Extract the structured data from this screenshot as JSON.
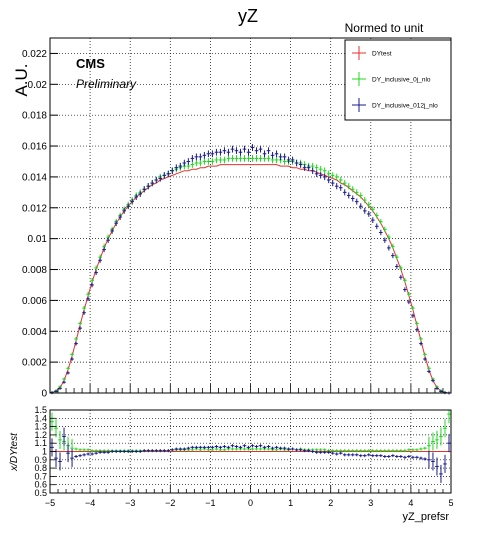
{
  "chart_data": [
    {
      "type": "scatter",
      "title": "yZ",
      "header": "Normed to unit",
      "ylabel": "A.U.",
      "xlabel": "",
      "xlim": [
        -5,
        5
      ],
      "ylim": [
        0,
        0.023
      ],
      "grid": true,
      "legend_position": "top-right",
      "annotations": [
        "CMS",
        "Preliminary"
      ],
      "yticks": [
        "0",
        "0.002",
        "0.004",
        "0.006",
        "0.008",
        "0.01",
        "0.012",
        "0.014",
        "0.016",
        "0.018",
        "0.02",
        "0.022"
      ],
      "x": [
        -4.95,
        -4.85,
        -4.75,
        -4.65,
        -4.55,
        -4.45,
        -4.35,
        -4.25,
        -4.15,
        -4.05,
        -3.95,
        -3.85,
        -3.75,
        -3.65,
        -3.55,
        -3.45,
        -3.35,
        -3.25,
        -3.15,
        -3.05,
        -2.95,
        -2.85,
        -2.75,
        -2.65,
        -2.55,
        -2.45,
        -2.35,
        -2.25,
        -2.15,
        -2.05,
        -1.95,
        -1.85,
        -1.75,
        -1.65,
        -1.55,
        -1.45,
        -1.35,
        -1.25,
        -1.15,
        -1.05,
        -0.95,
        -0.85,
        -0.75,
        -0.65,
        -0.55,
        -0.45,
        -0.35,
        -0.25,
        -0.15,
        -0.05,
        0.05,
        0.15,
        0.25,
        0.35,
        0.45,
        0.55,
        0.65,
        0.75,
        0.85,
        0.95,
        1.05,
        1.15,
        1.25,
        1.35,
        1.45,
        1.55,
        1.65,
        1.75,
        1.85,
        1.95,
        2.05,
        2.15,
        2.25,
        2.35,
        2.45,
        2.55,
        2.65,
        2.75,
        2.85,
        2.95,
        3.05,
        3.15,
        3.25,
        3.35,
        3.45,
        3.55,
        3.65,
        3.75,
        3.85,
        3.95,
        4.05,
        4.15,
        4.25,
        4.35,
        4.45,
        4.55,
        4.65,
        4.75,
        4.85,
        4.95
      ],
      "series": [
        {
          "name": "DYtest",
          "color": "#e8312f",
          "kind": "line",
          "values": [
            3e-05,
            0.00012,
            0.00035,
            0.0008,
            0.0015,
            0.0024,
            0.0034,
            0.0044,
            0.0054,
            0.0063,
            0.0072,
            0.008,
            0.0087,
            0.0094,
            0.01,
            0.0105,
            0.011,
            0.0114,
            0.0118,
            0.0121,
            0.0124,
            0.0127,
            0.0129,
            0.0131,
            0.0133,
            0.0135,
            0.0136,
            0.0138,
            0.0139,
            0.014,
            0.0141,
            0.0142,
            0.0143,
            0.0144,
            0.0144,
            0.0145,
            0.0145,
            0.0146,
            0.0146,
            0.0147,
            0.0147,
            0.0147,
            0.0148,
            0.0148,
            0.0148,
            0.0148,
            0.0148,
            0.0148,
            0.0148,
            0.0148,
            0.0148,
            0.0148,
            0.0148,
            0.0148,
            0.0148,
            0.0148,
            0.0148,
            0.0147,
            0.0147,
            0.0147,
            0.0146,
            0.0146,
            0.0145,
            0.0145,
            0.0144,
            0.0144,
            0.0143,
            0.0142,
            0.0141,
            0.014,
            0.0139,
            0.0138,
            0.0136,
            0.0135,
            0.0133,
            0.0131,
            0.0129,
            0.0127,
            0.0124,
            0.0121,
            0.0118,
            0.0114,
            0.011,
            0.0105,
            0.01,
            0.0094,
            0.0087,
            0.008,
            0.0072,
            0.0063,
            0.0054,
            0.0044,
            0.0034,
            0.0024,
            0.0015,
            0.0008,
            0.00035,
            0.00012,
            3e-05,
            0.0
          ]
        },
        {
          "name": "DY_inclusive_0j_nlo",
          "color": "#1fd81f",
          "kind": "markers",
          "values": [
            4e-05,
            0.00015,
            0.0004,
            0.0009,
            0.0016,
            0.0025,
            0.0035,
            0.0045,
            0.0055,
            0.0064,
            0.0073,
            0.0081,
            0.0088,
            0.0095,
            0.0101,
            0.0106,
            0.0111,
            0.0115,
            0.0119,
            0.0122,
            0.0125,
            0.0128,
            0.013,
            0.0132,
            0.0134,
            0.0136,
            0.0138,
            0.014,
            0.0141,
            0.0142,
            0.0144,
            0.0145,
            0.0146,
            0.0147,
            0.0147,
            0.0148,
            0.0149,
            0.0149,
            0.015,
            0.015,
            0.015,
            0.0151,
            0.0151,
            0.0151,
            0.0152,
            0.0152,
            0.0152,
            0.0152,
            0.0152,
            0.0152,
            0.0152,
            0.0152,
            0.0152,
            0.0152,
            0.0152,
            0.0151,
            0.0151,
            0.0151,
            0.015,
            0.015,
            0.015,
            0.0149,
            0.0149,
            0.0148,
            0.0147,
            0.0147,
            0.0146,
            0.0145,
            0.0144,
            0.0142,
            0.0141,
            0.014,
            0.0138,
            0.0136,
            0.0134,
            0.0132,
            0.013,
            0.0128,
            0.0125,
            0.0122,
            0.0119,
            0.0115,
            0.0111,
            0.0106,
            0.0101,
            0.0095,
            0.0088,
            0.0081,
            0.0073,
            0.0064,
            0.0055,
            0.0045,
            0.0035,
            0.0025,
            0.0016,
            0.0009,
            0.0004,
            0.00015,
            4e-05,
            0.0
          ]
        },
        {
          "name": "DY_inclusive_012j_nlo",
          "color": "#1a1a8c",
          "kind": "markers",
          "values": [
            2e-05,
            0.0001,
            0.0003,
            0.0007,
            0.0013,
            0.0022,
            0.0032,
            0.0042,
            0.0052,
            0.0061,
            0.007,
            0.0078,
            0.0086,
            0.0093,
            0.0099,
            0.0105,
            0.011,
            0.0114,
            0.0118,
            0.0121,
            0.0124,
            0.0127,
            0.0129,
            0.0132,
            0.0134,
            0.0136,
            0.0138,
            0.0139,
            0.0141,
            0.0142,
            0.0144,
            0.0146,
            0.0147,
            0.0149,
            0.015,
            0.0152,
            0.0153,
            0.0153,
            0.0154,
            0.0155,
            0.0155,
            0.0156,
            0.0156,
            0.0157,
            0.0156,
            0.0158,
            0.0157,
            0.0156,
            0.0158,
            0.0156,
            0.0159,
            0.0157,
            0.0158,
            0.0155,
            0.0157,
            0.0154,
            0.0155,
            0.0153,
            0.0153,
            0.0151,
            0.0151,
            0.0149,
            0.0148,
            0.0146,
            0.0146,
            0.0144,
            0.0142,
            0.0141,
            0.014,
            0.0138,
            0.0136,
            0.0134,
            0.0133,
            0.013,
            0.0128,
            0.0126,
            0.0124,
            0.0121,
            0.0118,
            0.0116,
            0.0112,
            0.0108,
            0.0104,
            0.0099,
            0.0094,
            0.0089,
            0.0082,
            0.0075,
            0.0067,
            0.0059,
            0.005,
            0.0041,
            0.0032,
            0.0022,
            0.0014,
            0.0008,
            0.0003,
            0.0001,
            2e-05,
            0.0
          ]
        }
      ]
    },
    {
      "type": "scatter",
      "title": "",
      "ylabel": "x/DYtest",
      "xlabel": "yZ_prefsr",
      "xlim": [
        -5,
        5
      ],
      "ylim": [
        0.5,
        1.5
      ],
      "grid": true,
      "yticks": [
        "0.5",
        "0.6",
        "0.7",
        "0.8",
        "0.9",
        "1",
        "1.1",
        "1.2",
        "1.3",
        "1.4",
        "1.5"
      ],
      "xticks": [
        "−5",
        "−4",
        "−3",
        "−2",
        "−1",
        "0",
        "1",
        "2",
        "3",
        "4",
        "5"
      ],
      "reference_line": 1.0,
      "series": [
        {
          "name": "DY_inclusive_0j_nlo",
          "color": "#1fd81f",
          "values": [
            1.36,
            1.28,
            1.14,
            1.12,
            1.07,
            1.04,
            1.03,
            1.02,
            1.02,
            1.02,
            1.01,
            1.01,
            1.01,
            1.01,
            1.01,
            1.01,
            1.01,
            1.01,
            1.01,
            1.01,
            1.01,
            1.01,
            1.01,
            1.01,
            1.01,
            1.01,
            1.01,
            1.01,
            1.01,
            1.01,
            1.02,
            1.02,
            1.02,
            1.02,
            1.02,
            1.02,
            1.03,
            1.02,
            1.03,
            1.02,
            1.02,
            1.03,
            1.02,
            1.02,
            1.03,
            1.03,
            1.03,
            1.03,
            1.03,
            1.03,
            1.03,
            1.03,
            1.03,
            1.03,
            1.03,
            1.02,
            1.02,
            1.03,
            1.02,
            1.02,
            1.03,
            1.02,
            1.03,
            1.02,
            1.02,
            1.02,
            1.02,
            1.02,
            1.02,
            1.01,
            1.01,
            1.01,
            1.01,
            1.01,
            1.01,
            1.01,
            1.01,
            1.01,
            1.01,
            1.01,
            1.01,
            1.01,
            1.01,
            1.01,
            1.01,
            1.01,
            1.01,
            1.01,
            1.01,
            1.02,
            1.02,
            1.02,
            1.03,
            1.04,
            1.07,
            1.12,
            1.14,
            1.18,
            1.28,
            1.45
          ]
        },
        {
          "name": "DY_inclusive_012j_nlo",
          "color": "#1a1a8c",
          "values": [
            1.05,
            0.92,
            0.88,
            1.18,
            0.98,
            0.92,
            0.94,
            0.95,
            0.96,
            0.97,
            0.97,
            0.98,
            0.99,
            0.99,
            0.99,
            1.0,
            1.0,
            1.0,
            1.0,
            1.0,
            1.0,
            1.0,
            1.0,
            1.01,
            1.01,
            1.01,
            1.01,
            1.01,
            1.01,
            1.01,
            1.02,
            1.03,
            1.03,
            1.03,
            1.04,
            1.05,
            1.05,
            1.05,
            1.05,
            1.05,
            1.05,
            1.06,
            1.05,
            1.06,
            1.05,
            1.07,
            1.06,
            1.05,
            1.07,
            1.05,
            1.07,
            1.06,
            1.07,
            1.05,
            1.06,
            1.04,
            1.05,
            1.04,
            1.04,
            1.03,
            1.03,
            1.02,
            1.02,
            1.01,
            1.01,
            1.0,
            0.99,
            0.99,
            0.99,
            0.99,
            0.98,
            0.97,
            0.98,
            0.96,
            0.96,
            0.96,
            0.96,
            0.95,
            0.95,
            0.96,
            0.95,
            0.95,
            0.95,
            0.94,
            0.94,
            0.95,
            0.94,
            0.94,
            0.93,
            0.94,
            0.93,
            0.93,
            0.92,
            0.91,
            0.9,
            0.88,
            0.82,
            0.73,
            0.85,
            1.1
          ]
        }
      ]
    }
  ]
}
